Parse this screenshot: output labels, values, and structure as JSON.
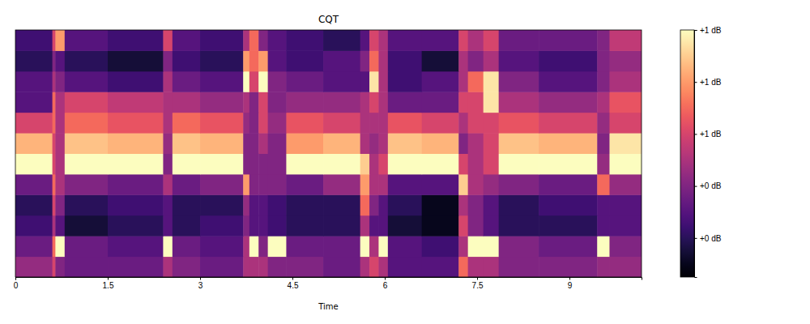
{
  "chart_data": {
    "type": "heatmap",
    "title": "CQT",
    "x_label": "Time",
    "tick_labels": "x",
    "xlim": [
      0,
      10.17
    ],
    "xticks": [
      0,
      1.5,
      3,
      4.5,
      6,
      7.5,
      9
    ],
    "x_edges": [
      0,
      0.6,
      0.65,
      0.8,
      1.5,
      2.4,
      2.55,
      3.0,
      3.7,
      3.8,
      3.95,
      4.1,
      4.4,
      5.0,
      5.6,
      5.75,
      5.9,
      6.05,
      6.6,
      7.2,
      7.35,
      7.6,
      7.85,
      8.5,
      9.45,
      9.65,
      10.17
    ],
    "z": [
      [
        0.45,
        0.6,
        0.4,
        0.35,
        0.35,
        0.5,
        0.4,
        0.35,
        0.5,
        0.5,
        0.5,
        0.4,
        0.4,
        0.35,
        0.5,
        0.6,
        0.5,
        0.3,
        0.3,
        0.7,
        0.5,
        0.5,
        0.4,
        0.4,
        0.45,
        0.45
      ],
      [
        0.35,
        0.7,
        1,
        0.35,
        0.3,
        1,
        0.35,
        0.3,
        0.5,
        1,
        0.4,
        1,
        0.35,
        0.35,
        1,
        0.5,
        1,
        0.3,
        0.25,
        0.5,
        1,
        1,
        0.4,
        0.35,
        1,
        0.4
      ],
      [
        0.25,
        0.5,
        0.3,
        0.15,
        0.2,
        0.3,
        0.2,
        0.25,
        0.4,
        0.3,
        0.3,
        0.25,
        0.2,
        0.2,
        0.5,
        0.3,
        0.3,
        0.15,
        0.1,
        0.6,
        0.4,
        0.3,
        0.2,
        0.2,
        0.3,
        0.3
      ],
      [
        0.2,
        0.6,
        0.4,
        0.2,
        0.25,
        0.3,
        0.2,
        0.2,
        0.45,
        0.3,
        0.3,
        0.25,
        0.2,
        0.2,
        0.7,
        0.4,
        0.3,
        0.2,
        0.1,
        0.5,
        0.4,
        0.3,
        0.2,
        0.25,
        0.3,
        0.3
      ],
      [
        0.35,
        0.7,
        0.5,
        0.4,
        0.35,
        0.5,
        0.35,
        0.4,
        0.8,
        0.4,
        0.4,
        0.4,
        0.35,
        0.45,
        0.8,
        0.5,
        0.5,
        0.3,
        0.3,
        0.9,
        0.5,
        0.45,
        0.4,
        0.35,
        0.7,
        0.45
      ],
      [
        1,
        0.6,
        0.5,
        1,
        1,
        0.4,
        1,
        1,
        0.4,
        0.4,
        0.4,
        0.4,
        1,
        1,
        0.9,
        0.5,
        0.6,
        1,
        1,
        0.6,
        0.5,
        0.6,
        1,
        1,
        0.45,
        1
      ],
      [
        0.85,
        0.6,
        0.5,
        0.88,
        0.85,
        0.45,
        0.88,
        0.85,
        0.4,
        0.4,
        0.5,
        0.4,
        0.8,
        0.85,
        0.5,
        0.45,
        0.5,
        0.88,
        0.85,
        0.4,
        0.5,
        0.6,
        0.88,
        0.85,
        0.4,
        0.95
      ],
      [
        0.6,
        0.7,
        0.5,
        0.7,
        0.65,
        0.5,
        0.7,
        0.65,
        0.45,
        0.4,
        0.6,
        0.45,
        0.65,
        0.6,
        0.5,
        0.5,
        0.5,
        0.65,
        0.6,
        0.5,
        0.6,
        0.6,
        0.65,
        0.6,
        0.45,
        0.6
      ],
      [
        0.3,
        0.7,
        0.5,
        0.6,
        0.55,
        0.5,
        0.5,
        0.45,
        0.5,
        0.4,
        0.6,
        0.4,
        0.45,
        0.45,
        0.5,
        0.6,
        0.5,
        0.35,
        0.35,
        0.6,
        0.6,
        0.95,
        0.5,
        0.45,
        0.5,
        0.65
      ],
      [
        0.3,
        0.5,
        0.4,
        0.3,
        0.25,
        0.5,
        0.35,
        0.3,
        1.0,
        0.6,
        1.0,
        0.4,
        0.35,
        0.3,
        0.3,
        0.95,
        0.5,
        0.25,
        0.3,
        0.5,
        0.7,
        0.95,
        0.4,
        0.3,
        0.4,
        0.5
      ],
      [
        0.2,
        0.4,
        0.3,
        0.2,
        0.15,
        0.4,
        0.25,
        0.2,
        0.8,
        0.7,
        0.8,
        0.3,
        0.25,
        0.3,
        0.4,
        0.7,
        0.5,
        0.25,
        0.15,
        0.5,
        0.4,
        0.5,
        0.3,
        0.25,
        0.4,
        0.45
      ],
      [
        0.25,
        0.6,
        0.8,
        0.3,
        0.25,
        0.6,
        0.3,
        0.25,
        0.5,
        0.7,
        0.4,
        0.3,
        0.25,
        0.2,
        0.3,
        0.6,
        0.5,
        0.3,
        0.3,
        0.6,
        0.5,
        0.6,
        0.35,
        0.35,
        0.4,
        0.55
      ]
    ],
    "colorbar": {
      "range": [
        0.05,
        1.0
      ],
      "ticks": [
        {
          "value": 0.2,
          "label": "+0 dB"
        },
        {
          "value": 0.4,
          "label": "+0 dB"
        },
        {
          "value": 0.6,
          "label": "+1 dB"
        },
        {
          "value": 0.8,
          "label": "+1 dB"
        },
        {
          "value": 1.0,
          "label": "+1 dB"
        }
      ]
    }
  }
}
